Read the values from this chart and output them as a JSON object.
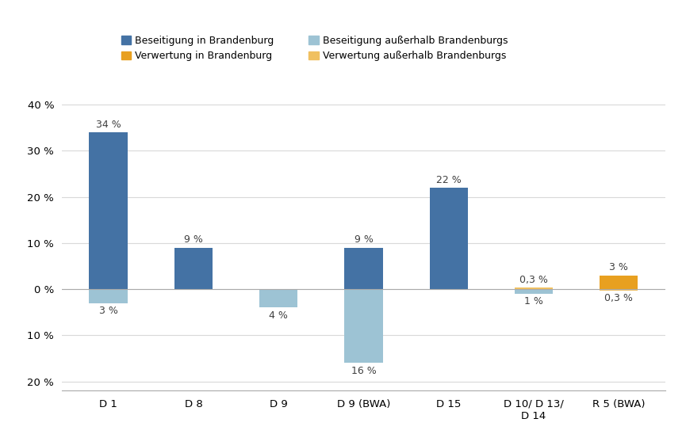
{
  "categories": [
    "D 1",
    "D 8",
    "D 9",
    "D 9 (BWA)",
    "D 15",
    "D 10/ D 13/\nD 14",
    "R 5 (BWA)"
  ],
  "series": {
    "Beseitigung in Brandenburg": {
      "color": "#4472A4",
      "values": [
        34,
        9,
        0,
        9,
        22,
        0,
        0
      ]
    },
    "Verwertung in Brandenburg": {
      "color": "#E8A020",
      "values": [
        0,
        0,
        0,
        0,
        0,
        0,
        3
      ]
    },
    "Beseitigung außerhalb Brandenburgs": {
      "color": "#9DC3D4",
      "values": [
        -3,
        0,
        -4,
        -16,
        0,
        -1,
        0
      ]
    },
    "Verwertung außerhalb Brandenburgs": {
      "color": "#F0C060",
      "values": [
        0,
        0,
        0,
        0,
        0,
        0.3,
        -0.3
      ]
    }
  },
  "annotations": {
    "Beseitigung in Brandenburg": [
      "34 %",
      "9 %",
      "",
      "9 %",
      "22 %",
      "",
      ""
    ],
    "Verwertung in Brandenburg": [
      "",
      "",
      "",
      "",
      "",
      "",
      "3 %"
    ],
    "Beseitigung außerhalb Brandenburgs": [
      "3 %",
      "",
      "4 %",
      "16 %",
      "",
      "1 %",
      ""
    ],
    "Verwertung außerhalb Brandenburgs": [
      "",
      "",
      "",
      "",
      "",
      "0,3 %",
      "0,3 %"
    ]
  },
  "ylim": [
    -22,
    42
  ],
  "yticks": [
    -20,
    -10,
    0,
    10,
    20,
    30,
    40
  ],
  "ytick_labels": [
    "20 %",
    "10 %",
    "0 %",
    "10 %",
    "20 %",
    "30 %",
    "40 %"
  ],
  "legend_row1": [
    "Beseitigung in Brandenburg",
    "Verwertung in Brandenburg"
  ],
  "legend_row2": [
    "Beseitigung außerhalb Brandenburgs",
    "Verwertung außerhalb Brandenburgs"
  ],
  "bar_width": 0.45,
  "figsize": [
    8.65,
    5.48
  ],
  "dpi": 100,
  "background_color": "#FFFFFF",
  "grid_color": "#D9D9D9",
  "annotation_fontsize": 9,
  "legend_fontsize": 9,
  "tick_fontsize": 9.5
}
